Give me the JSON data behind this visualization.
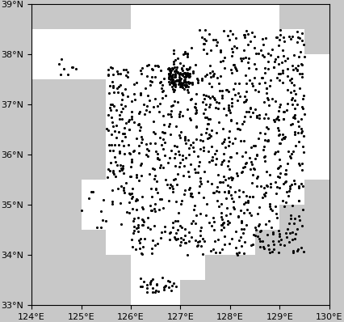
{
  "extent": [
    124,
    130,
    33,
    39
  ],
  "xticks": [
    124,
    125,
    126,
    127,
    128,
    129,
    130
  ],
  "yticks": [
    33,
    34,
    35,
    36,
    37,
    38,
    39
  ],
  "background_color": "#c8c8c8",
  "land_color": "#ffffff",
  "ocean_color": "#c8c8c8",
  "station_color": "black",
  "station_size": 5,
  "coastline_color": "black",
  "coastline_linewidth": 0.5,
  "figsize": [
    4.26,
    3.98
  ],
  "dpi": 100,
  "grid_res": 0.5,
  "domain_cells": [
    [
      124.0,
      37.5
    ],
    [
      124.0,
      38.0
    ],
    [
      124.5,
      37.5
    ],
    [
      124.5,
      38.0
    ],
    [
      125.0,
      37.5
    ],
    [
      125.0,
      38.0
    ],
    [
      125.0,
      34.5
    ],
    [
      125.0,
      35.0
    ],
    [
      125.5,
      38.0
    ],
    [
      125.5,
      37.5
    ],
    [
      125.5,
      37.0
    ],
    [
      125.5,
      36.5
    ],
    [
      125.5,
      36.0
    ],
    [
      125.5,
      35.5
    ],
    [
      125.5,
      35.0
    ],
    [
      125.5,
      34.5
    ],
    [
      125.5,
      34.0
    ],
    [
      126.0,
      38.5
    ],
    [
      126.0,
      38.0
    ],
    [
      126.0,
      37.5
    ],
    [
      126.0,
      37.0
    ],
    [
      126.0,
      36.5
    ],
    [
      126.0,
      36.0
    ],
    [
      126.0,
      35.5
    ],
    [
      126.0,
      35.0
    ],
    [
      126.0,
      34.5
    ],
    [
      126.0,
      34.0
    ],
    [
      126.0,
      33.5
    ],
    [
      126.0,
      33.0
    ],
    [
      126.5,
      38.5
    ],
    [
      126.5,
      38.0
    ],
    [
      126.5,
      37.5
    ],
    [
      126.5,
      37.0
    ],
    [
      126.5,
      36.5
    ],
    [
      126.5,
      36.0
    ],
    [
      126.5,
      35.5
    ],
    [
      126.5,
      35.0
    ],
    [
      126.5,
      34.5
    ],
    [
      126.5,
      34.0
    ],
    [
      126.5,
      33.5
    ],
    [
      126.5,
      33.0
    ],
    [
      127.0,
      38.5
    ],
    [
      127.0,
      38.0
    ],
    [
      127.0,
      37.5
    ],
    [
      127.0,
      37.0
    ],
    [
      127.0,
      36.5
    ],
    [
      127.0,
      36.0
    ],
    [
      127.0,
      35.5
    ],
    [
      127.0,
      35.0
    ],
    [
      127.0,
      34.5
    ],
    [
      127.0,
      34.0
    ],
    [
      127.0,
      33.5
    ],
    [
      127.5,
      38.5
    ],
    [
      127.5,
      38.0
    ],
    [
      127.5,
      37.5
    ],
    [
      127.5,
      37.0
    ],
    [
      127.5,
      36.5
    ],
    [
      127.5,
      36.0
    ],
    [
      127.5,
      35.5
    ],
    [
      127.5,
      35.0
    ],
    [
      127.5,
      34.5
    ],
    [
      127.5,
      34.0
    ],
    [
      128.0,
      38.5
    ],
    [
      128.0,
      38.0
    ],
    [
      128.0,
      37.5
    ],
    [
      128.0,
      37.0
    ],
    [
      128.0,
      36.5
    ],
    [
      128.0,
      36.0
    ],
    [
      128.0,
      35.5
    ],
    [
      128.0,
      35.0
    ],
    [
      128.0,
      34.5
    ],
    [
      128.0,
      34.0
    ],
    [
      128.5,
      38.5
    ],
    [
      128.5,
      38.0
    ],
    [
      128.5,
      37.5
    ],
    [
      128.5,
      37.0
    ],
    [
      128.5,
      36.5
    ],
    [
      128.5,
      36.0
    ],
    [
      128.5,
      35.5
    ],
    [
      128.5,
      35.0
    ],
    [
      128.5,
      34.5
    ],
    [
      129.0,
      38.0
    ],
    [
      129.0,
      37.5
    ],
    [
      129.0,
      37.0
    ],
    [
      129.0,
      36.5
    ],
    [
      129.0,
      36.0
    ],
    [
      129.0,
      35.5
    ],
    [
      129.0,
      35.0
    ],
    [
      129.5,
      37.5
    ],
    [
      129.5,
      37.0
    ],
    [
      129.5,
      36.5
    ],
    [
      129.5,
      36.0
    ],
    [
      129.5,
      35.5
    ]
  ],
  "title": ""
}
